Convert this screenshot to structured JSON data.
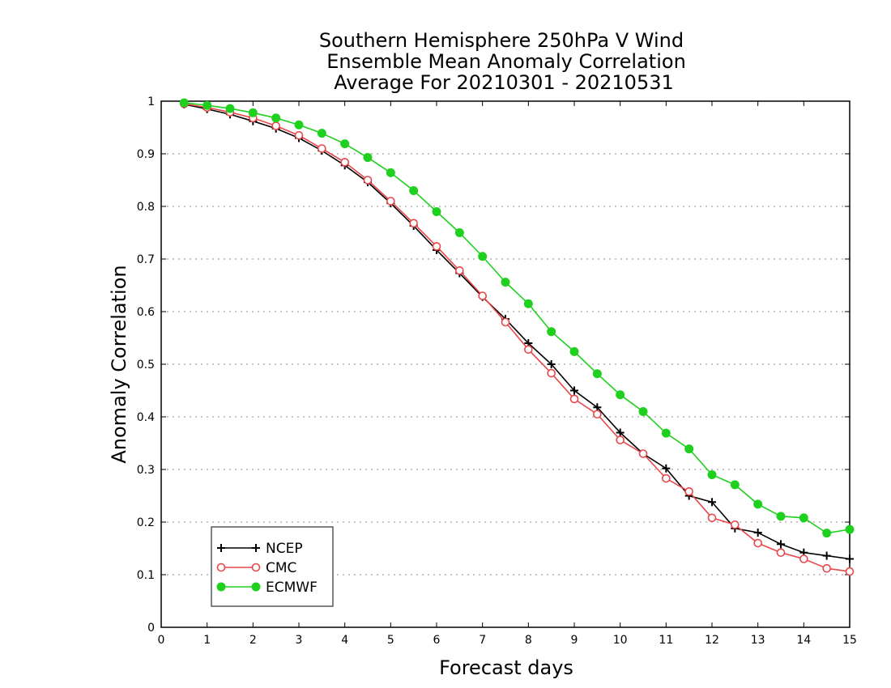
{
  "chart_data": {
    "type": "line",
    "title": [
      "Southern Hemisphere 250hPa V Wind",
      "Ensemble Mean Anomaly Correlation",
      "Average For 20210301 - 20210531"
    ],
    "xlabel": "Forecast days",
    "ylabel": "Anomaly Correlation",
    "xlim": [
      0,
      15
    ],
    "ylim": [
      0,
      1
    ],
    "xticks": [
      0,
      1,
      2,
      3,
      4,
      5,
      6,
      7,
      8,
      9,
      10,
      11,
      12,
      13,
      14,
      15
    ],
    "xtick_labels": [
      "0",
      "1",
      "2",
      "3",
      "4",
      "5",
      "6",
      "7",
      "8",
      "9",
      "10",
      "11",
      "12",
      "13",
      "14",
      "15"
    ],
    "yticks": [
      0,
      0.1,
      0.2,
      0.3,
      0.4,
      0.5,
      0.6,
      0.7,
      0.8,
      0.9,
      1
    ],
    "ytick_labels": [
      "0",
      "0.1",
      "0.2",
      "0.3",
      "0.4",
      "0.5",
      "0.6",
      "0.7",
      "0.8",
      "0.9",
      "1"
    ],
    "grid": "horizontal dotted",
    "legend_position": "bottom-left",
    "x": [
      0.5,
      1,
      1.5,
      2,
      2.5,
      3,
      3.5,
      4,
      4.5,
      5,
      5.5,
      6,
      6.5,
      7,
      7.5,
      8,
      8.5,
      9,
      9.5,
      10,
      10.5,
      11,
      11.5,
      12,
      12.5,
      13,
      13.5,
      14,
      14.5,
      15
    ],
    "series": [
      {
        "name": "NCEP",
        "color": "#000000",
        "marker": "plus",
        "values": [
          0.994,
          0.985,
          0.975,
          0.962,
          0.948,
          0.93,
          0.906,
          0.878,
          0.846,
          0.806,
          0.763,
          0.717,
          0.673,
          0.628,
          0.586,
          0.54,
          0.5,
          0.45,
          0.418,
          0.37,
          0.33,
          0.302,
          0.25,
          0.238,
          0.188,
          0.18,
          0.158,
          0.142,
          0.136,
          0.13
        ]
      },
      {
        "name": "CMC",
        "color": "#e8474a",
        "marker": "open-circle",
        "values": [
          0.995,
          0.988,
          0.979,
          0.968,
          0.953,
          0.935,
          0.91,
          0.884,
          0.85,
          0.81,
          0.768,
          0.724,
          0.678,
          0.63,
          0.58,
          0.528,
          0.483,
          0.434,
          0.405,
          0.356,
          0.33,
          0.283,
          0.258,
          0.208,
          0.195,
          0.16,
          0.142,
          0.13,
          0.112,
          0.106
        ]
      },
      {
        "name": "ECMWF",
        "color": "#1fd01f",
        "marker": "filled-circle",
        "values": [
          0.997,
          0.992,
          0.986,
          0.978,
          0.968,
          0.955,
          0.939,
          0.919,
          0.893,
          0.864,
          0.83,
          0.79,
          0.75,
          0.705,
          0.656,
          0.615,
          0.562,
          0.524,
          0.482,
          0.442,
          0.41,
          0.369,
          0.339,
          0.29,
          0.271,
          0.234,
          0.211,
          0.208,
          0.179,
          0.186
        ]
      }
    ]
  }
}
